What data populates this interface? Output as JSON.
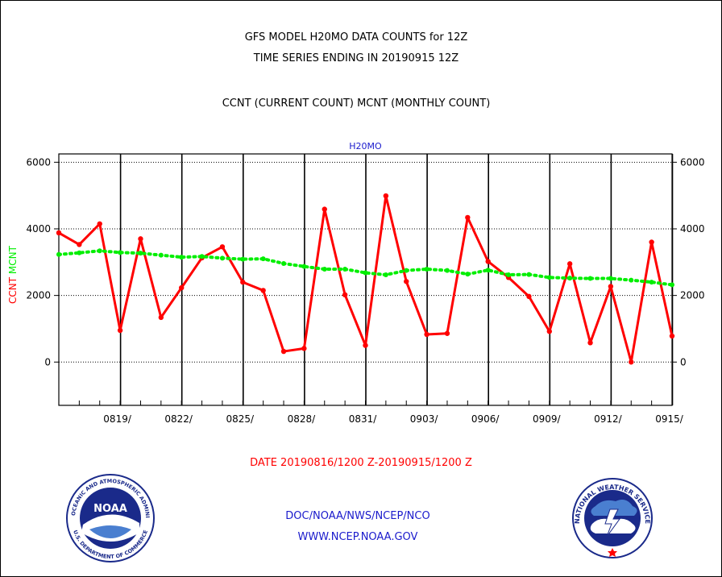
{
  "header": {
    "title_line1": "GFS MODEL H20MO DATA COUNTS for 12Z",
    "title_line2": "TIME SERIES ENDING IN 20190915 12Z",
    "subtitle": "CCNT (CURRENT COUNT) MCNT (MONTHLY COUNT)"
  },
  "footer": {
    "date_range": "DATE 20190816/1200 Z-20190915/1200 Z",
    "credit_org": "DOC/NOAA/NWS/NCEP/NCO",
    "credit_url": "WWW.NCEP.NOAA.GOV"
  },
  "logos": {
    "noaa_wordmark": "NOAA",
    "noaa_ring_text": "NATIONAL OCEANIC AND ATMOSPHERIC ADMINISTRATION",
    "noaa_ring_bottom": "U.S. DEPARTMENT OF COMMERCE",
    "nws_ring_text": "NATIONAL WEATHER SERVICE"
  },
  "chart_data": {
    "type": "line",
    "title": "H20MO",
    "ylabel_parts": [
      "CCNT",
      "MCNT"
    ],
    "ylim": [
      -1300,
      6250
    ],
    "yticks": [
      0,
      2000,
      4000,
      6000
    ],
    "x_range_days": [
      0,
      30
    ],
    "x_tick_labels": [
      "0819/",
      "0822/",
      "0825/",
      "0828/",
      "0831/",
      "0903/",
      "0906/",
      "0909/",
      "0912/",
      "0915/"
    ],
    "x_tick_days": [
      3,
      6,
      9,
      12,
      15,
      18,
      21,
      24,
      27,
      30
    ],
    "grid": true,
    "colors": {
      "ccnt": "#ff0000",
      "mcnt": "#00ee00",
      "title": "#1a1acc",
      "axis": "#000000"
    },
    "series": [
      {
        "name": "CCNT",
        "style": "solid",
        "values": [
          3880,
          3530,
          4150,
          950,
          3700,
          1340,
          2230,
          3130,
          3460,
          2400,
          2150,
          320,
          410,
          4590,
          2020,
          500,
          4990,
          2420,
          830,
          860,
          4340,
          3020,
          2540,
          1970,
          920,
          2950,
          580,
          2270,
          0,
          3600,
          780
        ]
      },
      {
        "name": "MCNT",
        "style": "dotted",
        "values": [
          3230,
          3280,
          3340,
          3290,
          3270,
          3210,
          3150,
          3170,
          3120,
          3090,
          3100,
          2960,
          2870,
          2790,
          2790,
          2680,
          2620,
          2750,
          2790,
          2750,
          2640,
          2760,
          2620,
          2630,
          2540,
          2520,
          2510,
          2510,
          2460,
          2400,
          2320
        ]
      }
    ]
  }
}
